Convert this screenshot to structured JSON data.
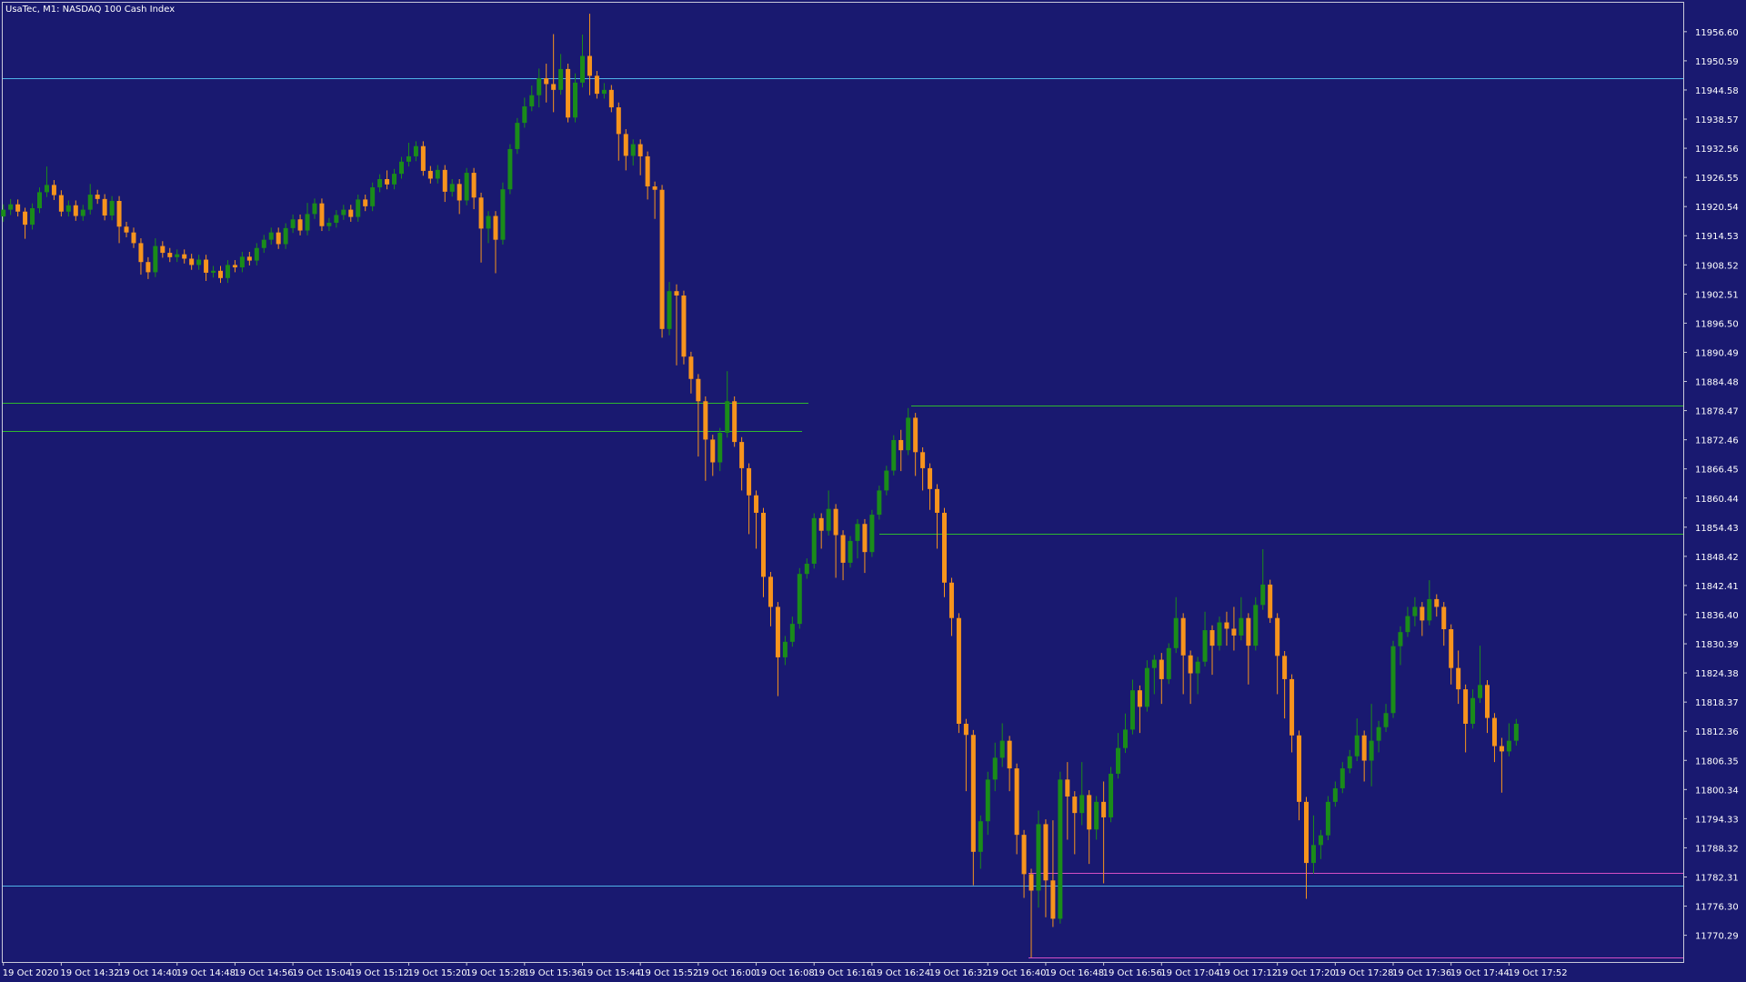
{
  "chart_data": {
    "type": "candlestick",
    "title": "UsaTec, M1:  NASDAQ 100 Cash Index",
    "up_color": "#1a8c1a",
    "down_color": "#f7941d",
    "categories": [
      "19 Oct 2020",
      null,
      null,
      null,
      null,
      null,
      null,
      null,
      "19 Oct 14:32",
      null,
      null,
      null,
      null,
      null,
      null,
      null,
      "19 Oct 14:40",
      null,
      null,
      null,
      null,
      null,
      null,
      null,
      "19 Oct 14:48",
      null,
      null,
      null,
      null,
      null,
      null,
      null,
      "19 Oct 14:56",
      null,
      null,
      null,
      null,
      null,
      null,
      null,
      "19 Oct 15:04",
      null,
      null,
      null,
      null,
      null,
      null,
      null,
      "19 Oct 15:12",
      null,
      null,
      null,
      null,
      null,
      null,
      null,
      "19 Oct 15:20",
      null,
      null,
      null,
      null,
      null,
      null,
      null,
      "19 Oct 15:28",
      null,
      null,
      null,
      null,
      null,
      null,
      null,
      "19 Oct 15:36",
      null,
      null,
      null,
      null,
      null,
      null,
      null,
      "19 Oct 15:44",
      null,
      null,
      null,
      null,
      null,
      null,
      null,
      "19 Oct 15:52",
      null,
      null,
      null,
      null,
      null,
      null,
      null,
      "19 Oct 16:00",
      null,
      null,
      null,
      null,
      null,
      null,
      null,
      "19 Oct 16:08",
      null,
      null,
      null,
      null,
      null,
      null,
      null,
      "19 Oct 16:16",
      null,
      null,
      null,
      null,
      null,
      null,
      null,
      "19 Oct 16:24",
      null,
      null,
      null,
      null,
      null,
      null,
      null,
      "19 Oct 16:32",
      null,
      null,
      null,
      null,
      null,
      null,
      null,
      "19 Oct 16:40",
      null,
      null,
      null,
      null,
      null,
      null,
      null,
      "19 Oct 16:48",
      null,
      null,
      null,
      null,
      null,
      null,
      null,
      "19 Oct 16:56",
      null,
      null,
      null,
      null,
      null,
      null,
      null,
      "19 Oct 17:04",
      null,
      null,
      null,
      null,
      null,
      null,
      null,
      "19 Oct 17:12",
      null,
      null,
      null,
      null,
      null,
      null,
      null,
      "19 Oct 17:20",
      null,
      null,
      null,
      null,
      null,
      null,
      null,
      "19 Oct 17:28",
      null,
      null,
      null,
      null,
      null,
      null,
      null,
      "19 Oct 17:36",
      null,
      null,
      null,
      null,
      null,
      null,
      null,
      "19 Oct 17:44",
      null,
      null,
      null,
      null,
      null,
      null,
      null,
      "19 Oct 17:52",
      null
    ],
    "open": [
      11918.5,
      11919.9,
      11921.0,
      11919.5,
      11916.8,
      11920.2,
      11923.5,
      11925.0,
      11922.9,
      11919.5,
      11920.8,
      11918.6,
      11919.9,
      11923.0,
      11922.1,
      11918.7,
      11921.7,
      11916.4,
      11915.2,
      11913.0,
      11909.1,
      11907.0,
      11912.4,
      11911.0,
      11910.1,
      11910.7,
      11909.8,
      11908.5,
      11909.6,
      11906.9,
      11907.3,
      11905.8,
      11908.5,
      11908.0,
      11910.2,
      11909.4,
      11912.0,
      11913.7,
      11915.2,
      11912.8,
      11916.1,
      11917.9,
      11915.6,
      11919.0,
      11921.2,
      11916.5,
      11917.2,
      11918.8,
      11919.9,
      11918.4,
      11922.0,
      11920.6,
      11924.5,
      11926.2,
      11925.1,
      11927.3,
      11929.8,
      11930.9,
      11933.0,
      11927.9,
      11926.3,
      11928.1,
      11923.6,
      11925.2,
      11921.8,
      11927.5,
      11922.4,
      11916.0,
      11918.6,
      11913.7,
      11924.1,
      11932.4,
      11937.8,
      11941.2,
      11943.5,
      11947.0,
      11945.8,
      11944.6,
      11948.9,
      11938.9,
      11946.1,
      11951.6,
      11947.5,
      11943.8,
      11944.6,
      11941.0,
      11935.5,
      11931.0,
      11933.4,
      11930.9,
      11924.7,
      11924.0,
      11895.3,
      11903.1,
      11902.2,
      11889.6,
      11885.0,
      11880.4,
      11872.5,
      11867.8,
      11873.9,
      11880.4,
      11872.0,
      11866.6,
      11861.0,
      11857.4,
      11844.2,
      11838.0,
      11827.6,
      11830.8,
      11834.5,
      11844.8,
      11846.9,
      11856.3,
      11853.7,
      11858.2,
      11852.8,
      11847.1,
      11851.6,
      11855.1,
      11849.3,
      11857.0,
      11862.0,
      11866.1,
      11872.4,
      11870.3,
      11877.0,
      11869.9,
      11866.6,
      11862.3,
      11857.4,
      11843.0,
      11835.7,
      11813.9,
      11811.6,
      11787.5,
      11793.8,
      11802.4,
      11806.9,
      11810.4,
      11804.7,
      11791.0,
      11782.9,
      11779.5,
      11793.2,
      11781.6,
      11773.7,
      11802.4,
      11798.9,
      11795.5,
      11799.2,
      11792.1,
      11797.8,
      11794.6,
      11803.6,
      11808.9,
      11812.7,
      11820.8,
      11817.4,
      11825.4,
      11827.1,
      11823.1,
      11829.5,
      11835.7,
      11828.0,
      11824.3,
      11826.7,
      11833.2,
      11830.0,
      11834.8,
      11833.5,
      11832.1,
      11835.7,
      11830.0,
      11838.4,
      11842.6,
      11835.7,
      11827.9,
      11823.1,
      11811.5,
      11797.8,
      11785.2,
      11788.9,
      11790.9,
      11797.8,
      11800.6,
      11804.7,
      11807.2,
      11811.5,
      11806.3,
      11810.4,
      11813.2,
      11816.1,
      11829.9,
      11832.8,
      11836.1,
      11838.0,
      11835.2,
      11839.6,
      11838.0,
      11833.4,
      11825.4,
      11821.0,
      11813.9,
      11819.2,
      11821.9,
      11815.1,
      11809.3,
      11808.2,
      11810.4
    ],
    "high": [
      11921.0,
      11922.1,
      11922.0,
      11920.3,
      11921.2,
      11924.5,
      11928.8,
      11926.0,
      11923.9,
      11921.8,
      11921.8,
      11920.9,
      11925.2,
      11924.0,
      11923.1,
      11922.7,
      11922.7,
      11917.4,
      11916.2,
      11914.0,
      11910.1,
      11914.0,
      11913.4,
      11912.0,
      11911.7,
      11911.7,
      11910.8,
      11910.6,
      11910.6,
      11908.3,
      11908.3,
      11909.5,
      11909.5,
      11911.2,
      11911.2,
      11913.0,
      11914.7,
      11916.2,
      11916.2,
      11917.1,
      11918.9,
      11918.9,
      11921.3,
      11922.2,
      11922.2,
      11918.2,
      11919.8,
      11920.9,
      11920.9,
      11923.0,
      11923.0,
      11925.5,
      11927.2,
      11928.0,
      11928.3,
      11930.8,
      11933.7,
      11934.0,
      11934.0,
      11928.9,
      11929.1,
      11929.1,
      11926.2,
      11926.2,
      11928.5,
      11928.5,
      11923.4,
      11919.6,
      11919.6,
      11925.5,
      11933.4,
      11938.8,
      11943.0,
      11945.5,
      11949.0,
      11950.0,
      11956.1,
      11952.0,
      11950.0,
      11948.0,
      11956.0,
      11960.3,
      11948.5,
      11946.0,
      11945.6,
      11942.0,
      11936.5,
      11934.4,
      11934.4,
      11931.9,
      11925.7,
      11925.0,
      11905.0,
      11904.5,
      11903.2,
      11890.6,
      11886.0,
      11881.4,
      11873.5,
      11874.9,
      11886.6,
      11881.4,
      11873.0,
      11867.6,
      11862.0,
      11858.4,
      11845.2,
      11839.0,
      11832.0,
      11836.0,
      11846.0,
      11848.0,
      11857.3,
      11857.3,
      11862.0,
      11859.2,
      11853.8,
      11852.6,
      11856.1,
      11856.1,
      11858.0,
      11863.0,
      11867.1,
      11873.4,
      11874.5,
      11879.0,
      11878.0,
      11870.9,
      11867.6,
      11863.3,
      11858.4,
      11844.0,
      11836.7,
      11814.9,
      11812.6,
      11795.0,
      11804.0,
      11810.0,
      11814.0,
      11811.4,
      11805.7,
      11792.0,
      11784.0,
      11796.0,
      11794.2,
      11794.0,
      11804.0,
      11806.0,
      11800.0,
      11806.0,
      11800.2,
      11799.0,
      11802.0,
      11805.0,
      11812.0,
      11816.0,
      11823.0,
      11821.8,
      11827.0,
      11828.1,
      11828.5,
      11830.5,
      11840.0,
      11836.7,
      11829.0,
      11827.7,
      11837.0,
      11834.2,
      11836.0,
      11837.0,
      11838.0,
      11840.0,
      11836.7,
      11840.0,
      11849.9,
      11843.6,
      11836.7,
      11828.9,
      11824.1,
      11812.5,
      11798.8,
      11795.0,
      11792.0,
      11799.0,
      11802.0,
      11806.0,
      11808.5,
      11815.0,
      11812.5,
      11818.0,
      11814.5,
      11818.0,
      11831.0,
      11834.0,
      11838.0,
      11840.0,
      11839.0,
      11843.5,
      11840.6,
      11839.0,
      11834.4,
      11829.0,
      11822.0,
      11821.0,
      11830.0,
      11822.9,
      11816.1,
      11811.0,
      11814.0,
      11814.9
    ],
    "low": [
      11917.4,
      11918.8,
      11918.5,
      11913.9,
      11915.8,
      11919.2,
      11922.5,
      11921.9,
      11918.5,
      11918.5,
      11917.6,
      11917.6,
      11918.9,
      11921.1,
      11917.7,
      11917.7,
      11913.0,
      11914.2,
      11912.0,
      11906.5,
      11905.6,
      11906.0,
      11910.0,
      11909.1,
      11909.1,
      11908.8,
      11907.5,
      11907.5,
      11905.2,
      11905.9,
      11904.8,
      11904.8,
      11907.0,
      11907.0,
      11908.4,
      11908.4,
      11911.0,
      11912.7,
      11911.8,
      11911.8,
      11915.1,
      11914.6,
      11914.6,
      11918.0,
      11915.5,
      11915.5,
      11916.2,
      11917.8,
      11917.4,
      11917.4,
      11919.6,
      11919.6,
      11923.5,
      11924.1,
      11924.1,
      11926.3,
      11928.8,
      11929.9,
      11926.9,
      11925.3,
      11925.3,
      11921.5,
      11922.6,
      11919.0,
      11920.8,
      11920.0,
      11909.0,
      11913.0,
      11906.8,
      11912.7,
      11923.1,
      11931.4,
      11936.8,
      11940.2,
      11941.0,
      11942.0,
      11940.0,
      11943.6,
      11937.9,
      11937.9,
      11945.1,
      11943.5,
      11942.8,
      11942.8,
      11940.0,
      11930.0,
      11928.0,
      11929.0,
      11927.0,
      11922.0,
      11918.0,
      11893.5,
      11894.0,
      11887.8,
      11888.0,
      11882.0,
      11869.0,
      11864.0,
      11865.0,
      11866.0,
      11872.9,
      11871.0,
      11862.0,
      11853.0,
      11850.0,
      11840.0,
      11834.0,
      11819.6,
      11826.0,
      11829.8,
      11833.5,
      11843.8,
      11845.9,
      11850.0,
      11852.7,
      11844.0,
      11843.5,
      11846.1,
      11848.0,
      11845.0,
      11848.3,
      11856.0,
      11861.0,
      11865.1,
      11866.0,
      11869.3,
      11865.0,
      11862.0,
      11858.0,
      11850.0,
      11840.0,
      11832.0,
      11812.0,
      11800.0,
      11780.6,
      11784.0,
      11791.0,
      11800.0,
      11805.0,
      11800.0,
      11787.0,
      11778.0,
      11765.7,
      11776.0,
      11774.0,
      11772.0,
      11772.7,
      11790.0,
      11787.0,
      11793.0,
      11785.0,
      11790.0,
      11781.0,
      11793.6,
      11802.6,
      11807.9,
      11811.7,
      11812.0,
      11816.4,
      11820.0,
      11818.0,
      11822.1,
      11828.5,
      11820.0,
      11818.0,
      11820.0,
      11825.7,
      11824.0,
      11829.0,
      11830.0,
      11829.0,
      11831.1,
      11822.0,
      11829.0,
      11837.4,
      11834.7,
      11820.0,
      11815.0,
      11808.0,
      11794.0,
      11777.8,
      11783.0,
      11786.0,
      11789.9,
      11796.8,
      11799.6,
      11803.7,
      11806.2,
      11802.0,
      11801.0,
      11808.0,
      11812.2,
      11815.1,
      11826.0,
      11831.8,
      11834.0,
      11832.0,
      11834.2,
      11836.0,
      11830.0,
      11822.0,
      11818.0,
      11808.0,
      11812.9,
      11818.2,
      11812.0,
      11806.0,
      11799.7,
      11807.2,
      11809.4
    ],
    "close": [
      11919.9,
      11921.0,
      11919.5,
      11916.8,
      11920.2,
      11923.5,
      11925.0,
      11922.9,
      11919.5,
      11920.8,
      11918.6,
      11919.9,
      11923.0,
      11922.1,
      11918.7,
      11921.7,
      11916.4,
      11915.2,
      11913.0,
      11909.1,
      11907.0,
      11912.4,
      11911.0,
      11910.1,
      11910.7,
      11909.8,
      11908.5,
      11909.6,
      11906.9,
      11907.3,
      11905.8,
      11908.5,
      11908.0,
      11910.2,
      11909.4,
      11912.0,
      11913.7,
      11915.2,
      11912.8,
      11916.1,
      11917.9,
      11915.6,
      11919.0,
      11921.2,
      11916.5,
      11917.2,
      11918.8,
      11919.9,
      11918.4,
      11922.0,
      11920.6,
      11924.5,
      11926.2,
      11925.1,
      11927.3,
      11929.8,
      11930.9,
      11933.0,
      11927.9,
      11926.3,
      11928.1,
      11923.6,
      11925.2,
      11921.8,
      11927.5,
      11922.4,
      11916.0,
      11918.6,
      11913.7,
      11924.1,
      11932.4,
      11937.8,
      11941.2,
      11943.5,
      11947.0,
      11945.8,
      11944.6,
      11948.9,
      11938.9,
      11946.1,
      11951.6,
      11947.5,
      11943.8,
      11944.6,
      11941.0,
      11935.5,
      11931.0,
      11933.4,
      11930.9,
      11924.7,
      11924.0,
      11895.3,
      11903.1,
      11902.2,
      11889.6,
      11885.0,
      11880.4,
      11872.5,
      11867.8,
      11873.9,
      11880.4,
      11872.0,
      11866.6,
      11861.0,
      11857.4,
      11844.2,
      11838.0,
      11827.6,
      11830.8,
      11834.5,
      11844.8,
      11846.9,
      11856.3,
      11853.7,
      11858.2,
      11852.8,
      11847.1,
      11851.6,
      11855.1,
      11849.3,
      11857.0,
      11862.0,
      11866.1,
      11872.4,
      11870.3,
      11877.0,
      11869.9,
      11866.6,
      11862.3,
      11857.4,
      11843.0,
      11835.7,
      11813.9,
      11811.6,
      11787.5,
      11793.8,
      11802.4,
      11806.9,
      11810.4,
      11804.7,
      11791.0,
      11782.9,
      11779.5,
      11793.2,
      11781.6,
      11773.7,
      11802.4,
      11798.9,
      11795.5,
      11799.2,
      11792.1,
      11797.8,
      11794.6,
      11803.6,
      11808.9,
      11812.7,
      11820.8,
      11817.4,
      11825.4,
      11827.1,
      11823.1,
      11829.5,
      11835.7,
      11828.0,
      11824.3,
      11826.7,
      11833.2,
      11830.0,
      11834.8,
      11833.5,
      11832.1,
      11835.7,
      11830.0,
      11838.4,
      11842.6,
      11835.7,
      11827.9,
      11823.1,
      11811.5,
      11797.8,
      11785.2,
      11788.9,
      11790.9,
      11797.8,
      11800.6,
      11804.7,
      11807.2,
      11811.5,
      11806.3,
      11810.4,
      11813.2,
      11816.1,
      11829.9,
      11832.8,
      11836.1,
      11838.0,
      11835.2,
      11839.6,
      11838.0,
      11833.4,
      11825.4,
      11821.0,
      11813.9,
      11819.2,
      11821.9,
      11815.1,
      11809.3,
      11808.2,
      11810.4,
      11813.9
    ],
    "levels": [
      {
        "value": 11947.0,
        "color": "#4fb3e8"
      },
      {
        "value": 11780.6,
        "color": "#4fb3e8"
      },
      {
        "value": 11880.0,
        "color": "#2fb82f"
      },
      {
        "value": 11874.2,
        "color": "#2fb82f"
      },
      {
        "value": 11879.5,
        "color": "#2fb82f"
      },
      {
        "value": 11853.1,
        "color": "#2fb82f"
      },
      {
        "value": 11783.1,
        "color": "#d24fc4"
      },
      {
        "value": 11765.7,
        "color": "#d24fc4"
      }
    ],
    "ylim": [
      11764.78,
      11962.57
    ],
    "yticks": [
      {
        "value": 11956.6,
        "label": "11956.60"
      },
      11950.59,
      11944.58,
      11938.57,
      11932.56,
      11926.55,
      11920.54,
      11914.53,
      11908.52,
      11902.51,
      {
        "value": 11896.5,
        "label": "11896.50"
      },
      11890.49,
      11884.48,
      11878.47,
      11872.46,
      11866.45,
      11860.44,
      11854.43,
      11848.42,
      11842.41,
      {
        "value": 11836.4,
        "label": "11836.40"
      },
      11830.39,
      11824.38,
      11818.37,
      11812.36,
      11806.35,
      11800.34,
      11794.33,
      11788.32,
      11782.31,
      {
        "value": 11776.3,
        "label": "11776.30"
      },
      11770.29
    ]
  }
}
